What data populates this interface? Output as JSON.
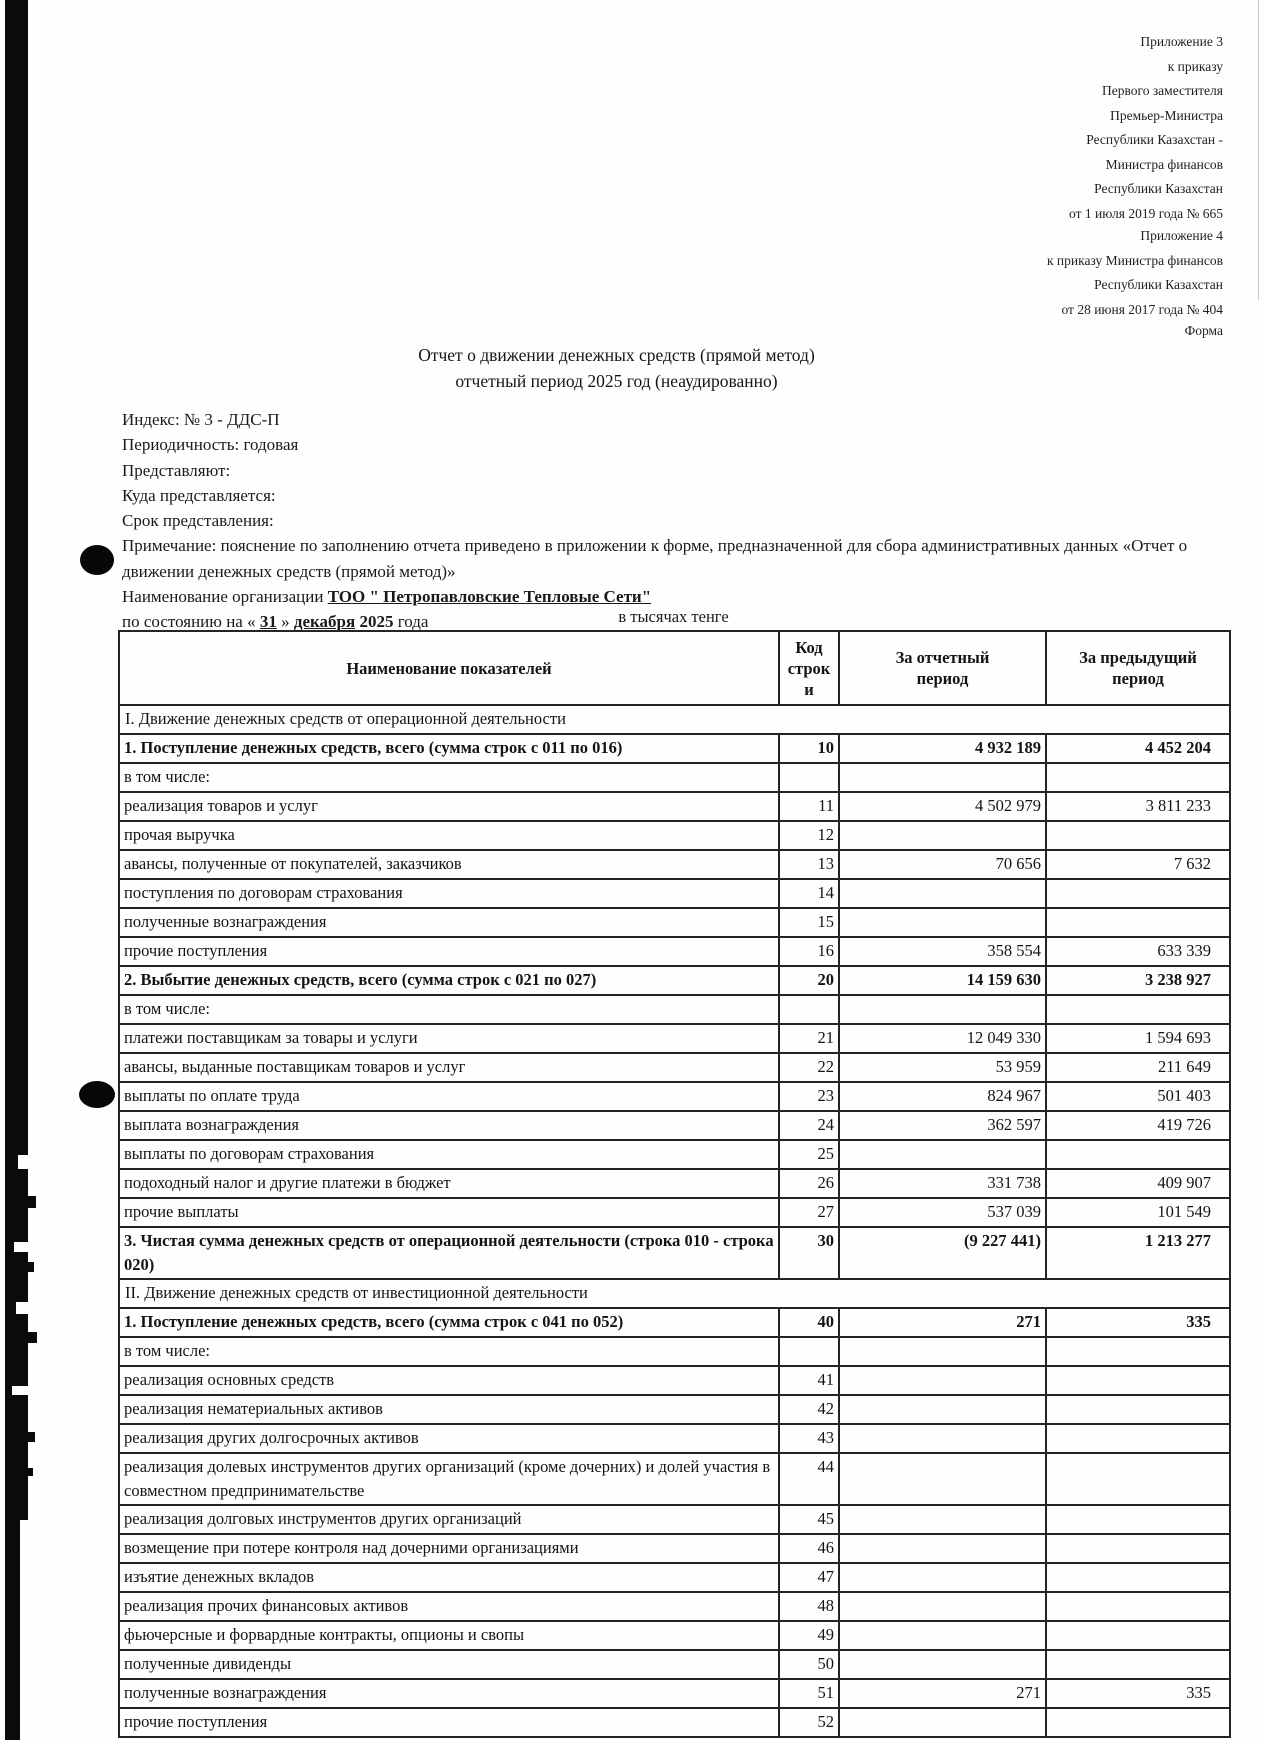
{
  "page": {
    "appendix_block_1": {
      "lines": [
        "Приложение 3",
        "к приказу",
        "Первого заместителя",
        "Премьер-Министра",
        "Республики Казахстан -",
        "Министра финансов",
        "Республики Казахстан",
        "от 1 июля 2019 года № 665"
      ]
    },
    "appendix_block_2": {
      "lines": [
        "Приложение 4",
        "к приказу Министра финансов",
        "Республики Казахстан",
        "от 28 июня 2017 года № 404"
      ]
    },
    "form_label": "Форма",
    "title": {
      "line1": "Отчет о движении денежных средств (прямой метод)",
      "line2": "отчетный период  2025 год (неаудированно)"
    },
    "meta_lines": [
      "Индекс: № 3 - ДДС-П",
      "Периодичность: годовая",
      "Представляют:",
      "Куда представляется:",
      "Срок представления:"
    ],
    "note": "Примечание: пояснение по заполнению отчета приведено в приложении к форме, предназначенной для сбора административных данных «Отчет о движении денежных средств (прямой метод)»",
    "org": {
      "label": "Наименование организации ",
      "name": "ТОО \" Петропавловские Тепловые Сети\""
    },
    "as_of": {
      "prefix": "по состоянию на « ",
      "day": "31",
      "separator": " » ",
      "month": "декабря",
      "year": " 2025",
      "suffix": " года"
    },
    "units_label": "в тысячах тенге"
  },
  "table": {
    "columns": {
      "name": "Наименование показателей",
      "code": "Код\nстрок\nи",
      "current": "За отчетный\nпериод",
      "previous": "За предыдущий\nпериод"
    },
    "rows": [
      {
        "t": "section",
        "name": "I. Движение денежных средств от операционной деятельности"
      },
      {
        "t": "row",
        "b": true,
        "name": "1. Поступление денежных средств, всего (сумма строк с 011 по 016)",
        "code": "10",
        "cur": "4 932 189",
        "prev": "4 452 204"
      },
      {
        "t": "row",
        "name": "в том числе:",
        "code": "",
        "cur": "",
        "prev": ""
      },
      {
        "t": "row",
        "name": "реализация товаров и услуг",
        "code": "11",
        "cur": "4 502 979",
        "prev": "3 811 233"
      },
      {
        "t": "row",
        "name": "прочая выручка",
        "code": "12",
        "cur": "",
        "prev": ""
      },
      {
        "t": "row",
        "name": "авансы, полученные от покупателей, заказчиков",
        "code": "13",
        "cur": "70 656",
        "prev": "7 632"
      },
      {
        "t": "row",
        "name": "поступления по договорам страхования",
        "code": "14",
        "cur": "",
        "prev": ""
      },
      {
        "t": "row",
        "name": "полученные вознаграждения",
        "code": "15",
        "cur": "",
        "prev": ""
      },
      {
        "t": "row",
        "name": "прочие поступления",
        "code": "16",
        "cur": "358 554",
        "prev": "633 339"
      },
      {
        "t": "row",
        "b": true,
        "name": "2. Выбытие денежных средств, всего (сумма строк с 021 по 027)",
        "code": "20",
        "cur": "14 159 630",
        "prev": "3 238 927"
      },
      {
        "t": "row",
        "name": "в том числе:",
        "code": "",
        "cur": "",
        "prev": ""
      },
      {
        "t": "row",
        "name": "платежи поставщикам за товары и услуги",
        "code": "21",
        "cur": "12 049 330",
        "prev": "1 594 693"
      },
      {
        "t": "row",
        "name": "авансы, выданные поставщикам товаров и услуг",
        "code": "22",
        "cur": "53 959",
        "prev": "211 649"
      },
      {
        "t": "row",
        "name": "выплаты по оплате труда",
        "code": "23",
        "cur": "824 967",
        "prev": "501 403"
      },
      {
        "t": "row",
        "name": "выплата вознаграждения",
        "code": "24",
        "cur": "362 597",
        "prev": "419 726"
      },
      {
        "t": "row",
        "name": "выплаты по договорам страхования",
        "code": "25",
        "cur": "",
        "prev": ""
      },
      {
        "t": "row",
        "name": "подоходный налог и другие платежи в бюджет",
        "code": "26",
        "cur": "331 738",
        "prev": "409 907"
      },
      {
        "t": "row",
        "name": "прочие выплаты",
        "code": "27",
        "cur": "537 039",
        "prev": "101 549"
      },
      {
        "t": "row",
        "b": true,
        "name": "3. Чистая сумма денежных средств от операционной деятельности (строка 010 - строка 020)",
        "code": "30",
        "cur": "(9 227 441)",
        "prev": "1 213 277"
      },
      {
        "t": "section",
        "name": "II. Движение денежных средств от инвестиционной деятельности"
      },
      {
        "t": "row",
        "b": true,
        "name": "1. Поступление денежных средств, всего (сумма строк с 041 по 052)",
        "code": "40",
        "cur": "271",
        "prev": "335"
      },
      {
        "t": "row",
        "name": "в том числе:",
        "code": "",
        "cur": "",
        "prev": ""
      },
      {
        "t": "row",
        "name": "реализация основных средств",
        "code": "41",
        "cur": "",
        "prev": ""
      },
      {
        "t": "row",
        "name": "реализация нематериальных активов",
        "code": "42",
        "cur": "",
        "prev": ""
      },
      {
        "t": "row",
        "name": "реализация других долгосрочных активов",
        "code": "43",
        "cur": "",
        "prev": ""
      },
      {
        "t": "row",
        "name": "реализация долевых инструментов других организаций (кроме дочерних) и долей участия в совместном предпринимательстве",
        "code": "44",
        "cur": "",
        "prev": ""
      },
      {
        "t": "row",
        "name": "реализация долговых инструментов других организаций",
        "code": "45",
        "cur": "",
        "prev": ""
      },
      {
        "t": "row",
        "name": "возмещение при потере контроля над дочерними организациями",
        "code": "46",
        "cur": "",
        "prev": ""
      },
      {
        "t": "row",
        "name": "изъятие денежных вкладов",
        "code": "47",
        "cur": "",
        "prev": ""
      },
      {
        "t": "row",
        "name": "реализация прочих финансовых активов",
        "code": "48",
        "cur": "",
        "prev": ""
      },
      {
        "t": "row",
        "name": "фьючерсные и форвардные контракты, опционы и свопы",
        "code": "49",
        "cur": "",
        "prev": ""
      },
      {
        "t": "row",
        "name": "полученные дивиденды",
        "code": "50",
        "cur": "",
        "prev": ""
      },
      {
        "t": "row",
        "name": "полученные вознаграждения",
        "code": "51",
        "cur": "271",
        "prev": "335"
      },
      {
        "t": "row",
        "name": "прочие поступления",
        "code": "52",
        "cur": "",
        "prev": ""
      }
    ]
  }
}
